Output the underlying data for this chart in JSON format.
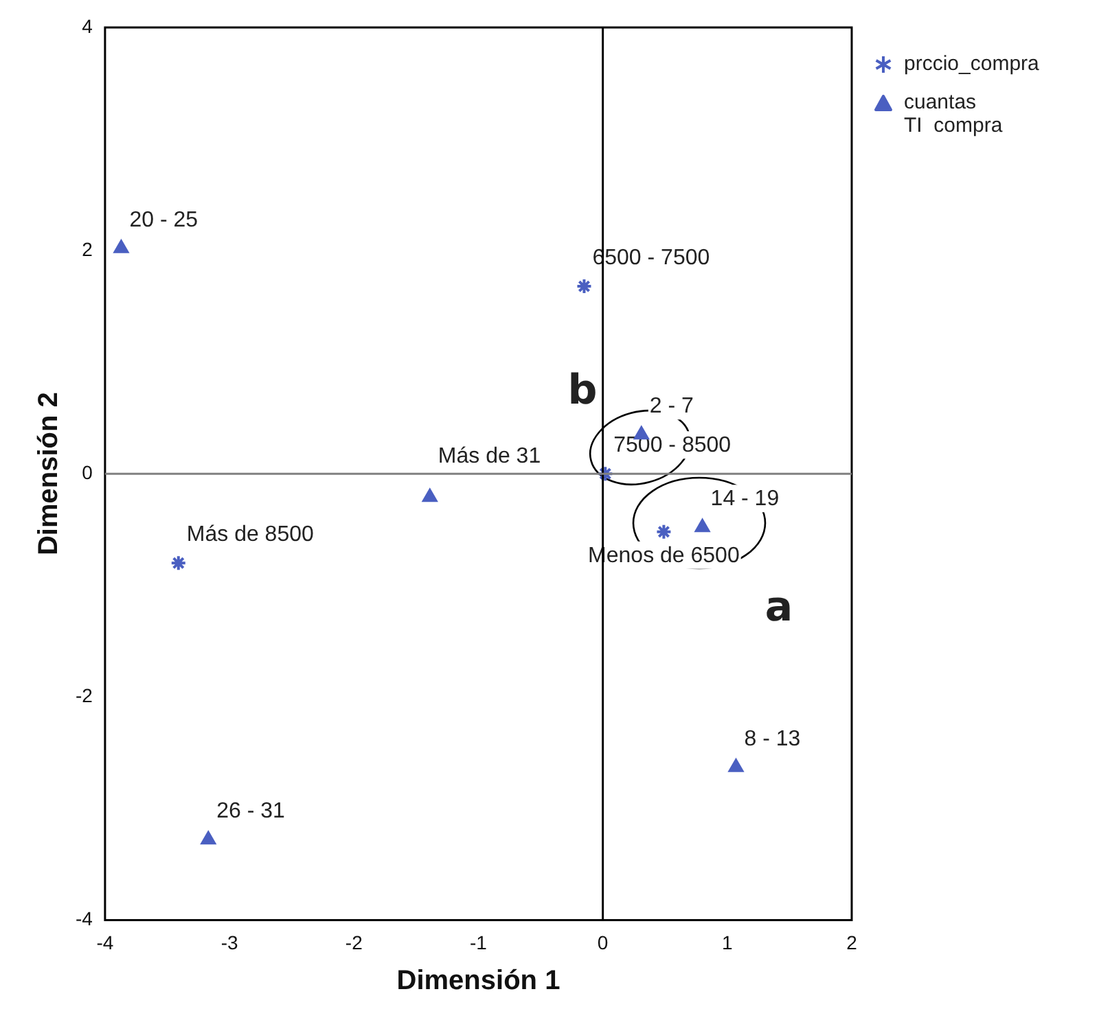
{
  "chart_data": {
    "type": "scatter",
    "xlabel": "Dimensión 1",
    "ylabel": "Dimensión 2",
    "xlim": [
      -4,
      2
    ],
    "xticks": [
      -4,
      -3,
      -2,
      -1,
      0,
      1,
      2
    ],
    "ylim": [
      -4,
      4
    ],
    "yticks": [
      -4,
      -2,
      0,
      2,
      4
    ],
    "grid": false,
    "legend": "top right",
    "ref_lines": [
      {
        "axis": "x",
        "value": 0,
        "color": "#000000"
      },
      {
        "axis": "y",
        "value": 0,
        "color": "#808080"
      }
    ],
    "series": [
      {
        "name": "prccio_compra",
        "color": "#4a5fc1",
        "marker": "cross",
        "x": [
          -0.15,
          0.02,
          -3.41,
          0.49
        ],
        "values": [
          1.68,
          0,
          -0.8,
          -0.52
        ]
      },
      {
        "name": "cuantas\nTI  compra",
        "color": "#4a5fc1",
        "marker": "triangle",
        "x": [
          -3.87,
          0.31,
          -1.39,
          0.8,
          1.07,
          -3.17
        ],
        "values": [
          2.02,
          0.35,
          -0.21,
          -0.48,
          -2.63,
          -3.28
        ]
      }
    ],
    "annotations": [
      {
        "text": "6500 - 7500",
        "x": -0.15,
        "y": 1.68
      },
      {
        "text": "7500 - 8500",
        "x": 0.02,
        "y": 0
      },
      {
        "text": "Más de 8500",
        "x": -3.41,
        "y": -0.8
      },
      {
        "text": "20 - 25",
        "x": -3.87,
        "y": 2.02
      },
      {
        "text": "2 - 7",
        "x": 0.31,
        "y": 0.35
      },
      {
        "text": "Más de 31",
        "x": -1.39,
        "y": -0.21
      },
      {
        "text": "14 - 19",
        "x": 0.8,
        "y": -0.48
      },
      {
        "text": "Menos de 6500",
        "x": 0.49,
        "y": -0.52
      },
      {
        "text": "8 - 13",
        "x": 1.07,
        "y": -2.63
      },
      {
        "text": "26 - 31",
        "x": -3.17,
        "y": -3.28
      },
      "a",
      "b"
    ]
  }
}
